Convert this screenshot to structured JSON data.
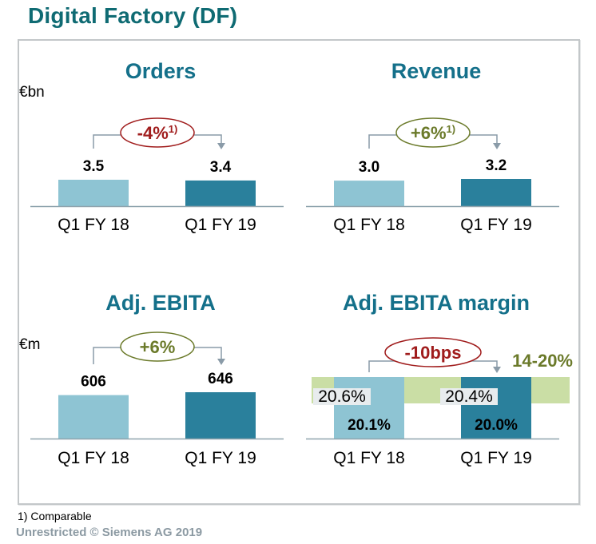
{
  "page": {
    "title": "Digital Factory (DF)",
    "footnote": "1) Comparable",
    "copyright": "Unrestricted © Siemens AG 2019"
  },
  "colors": {
    "title": "#0f6b73",
    "panel_title": "#14708a",
    "bar_prior": "#8ec4d3",
    "bar_current": "#2a809c",
    "negative": "#a01c1c",
    "positive": "#6b7a2a",
    "target_band": "#cadea5",
    "connector": "#8a9ba8"
  },
  "chart_data": [
    {
      "type": "bar",
      "title": "Orders",
      "unit": "€bn",
      "categories": [
        "Q1 FY 18",
        "Q1 FY 19"
      ],
      "values": [
        3.5,
        3.4
      ],
      "value_labels": [
        "3.5",
        "3.4"
      ],
      "change": {
        "label": "-4%",
        "footnote_ref": "1)",
        "direction": "negative"
      },
      "ylim": [
        0,
        3.5
      ]
    },
    {
      "type": "bar",
      "title": "Revenue",
      "unit": "",
      "categories": [
        "Q1 FY 18",
        "Q1 FY 19"
      ],
      "values": [
        3.0,
        3.2
      ],
      "value_labels": [
        "3.0",
        "3.2"
      ],
      "change": {
        "label": "+6%",
        "footnote_ref": "1)",
        "direction": "positive"
      },
      "ylim": [
        0,
        3.2
      ]
    },
    {
      "type": "bar",
      "title": "Adj. EBITA",
      "unit": "€m",
      "categories": [
        "Q1 FY 18",
        "Q1 FY 19"
      ],
      "values": [
        606,
        646
      ],
      "value_labels": [
        "606",
        "646"
      ],
      "change": {
        "label": "+6%",
        "footnote_ref": "",
        "direction": "positive"
      },
      "ylim": [
        0,
        646
      ]
    },
    {
      "type": "bar",
      "title": "Adj. EBITA margin",
      "unit": "",
      "categories": [
        "Q1 FY 18",
        "Q1 FY 19"
      ],
      "values": [
        20.1,
        20.0
      ],
      "value_labels": [
        "20.1%",
        "20.0%"
      ],
      "secondary_values": [
        20.6,
        20.4
      ],
      "secondary_labels": [
        "20.6%",
        "20.4%"
      ],
      "change": {
        "label": "-10bps",
        "footnote_ref": "",
        "direction": "negative"
      },
      "target_range": {
        "label": "14-20%",
        "low": 14,
        "high": 20
      }
    }
  ]
}
